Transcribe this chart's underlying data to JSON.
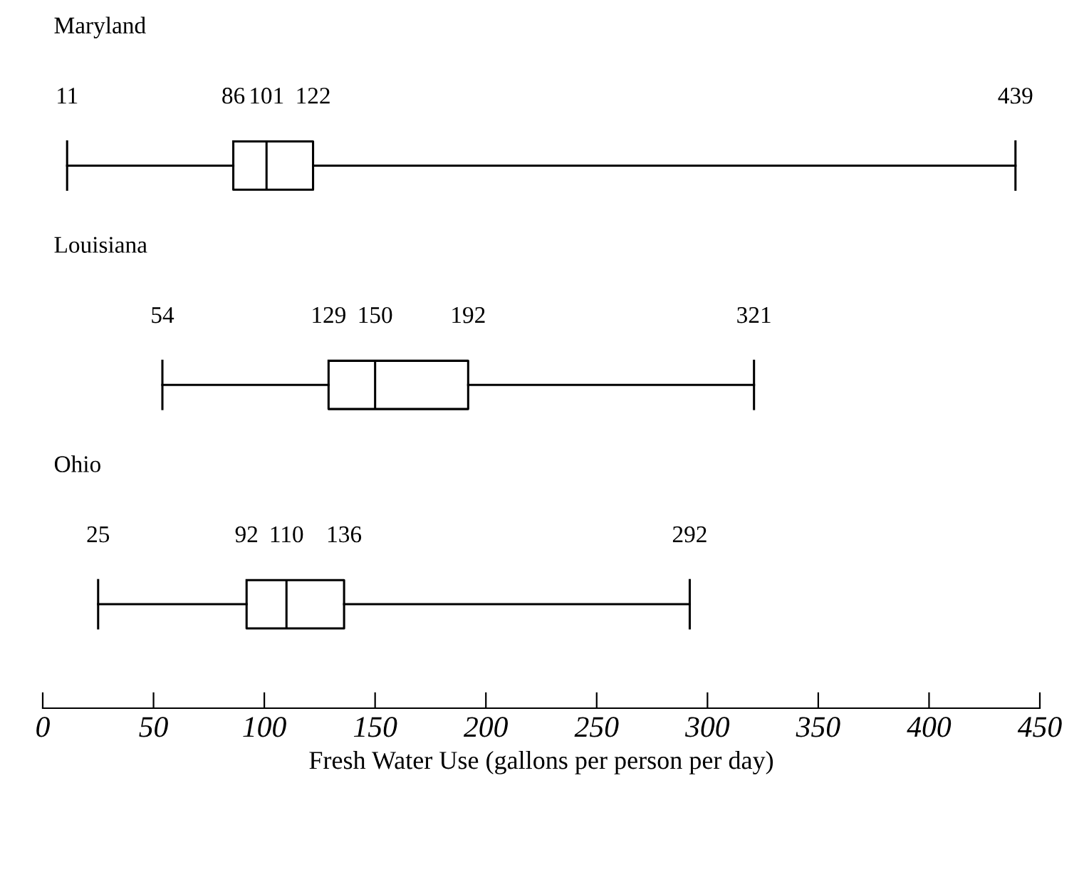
{
  "chart_data": {
    "type": "box",
    "orientation": "horizontal",
    "categories": [
      "Maryland",
      "Louisiana",
      "Ohio"
    ],
    "boxes": [
      {
        "low": 11,
        "q1": 86,
        "median": 101,
        "q3": 122,
        "high": 439
      },
      {
        "low": 54,
        "q1": 129,
        "median": 150,
        "q3": 192,
        "high": 321
      },
      {
        "low": 25,
        "q1": 92,
        "median": 110,
        "q3": 136,
        "high": 292
      }
    ],
    "annotations": [
      "11",
      "86",
      "101",
      "122",
      "439",
      "54",
      "129",
      "150",
      "192",
      "321",
      "25",
      "92",
      "110",
      "136",
      "292"
    ],
    "xlim": [
      0,
      450
    ],
    "xticks": [
      0,
      50,
      100,
      150,
      200,
      250,
      300,
      350,
      400,
      450
    ],
    "xlabel": "Fresh Water Use (gallons per person per day)"
  }
}
